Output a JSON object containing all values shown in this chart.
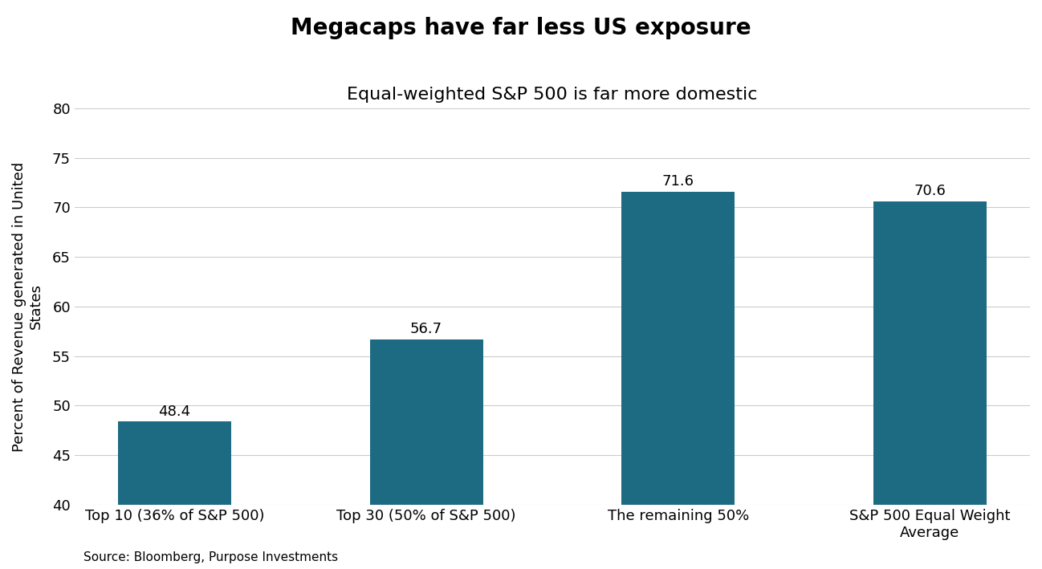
{
  "title": "Megacaps have far less US exposure",
  "subtitle": "Equal-weighted S&P 500 is far more domestic",
  "categories": [
    "Top 10 (36% of S&P 500)",
    "Top 30 (50% of S&P 500)",
    "The remaining 50%",
    "S&P 500 Equal Weight\nAverage"
  ],
  "values": [
    48.4,
    56.7,
    71.6,
    70.6
  ],
  "bar_color": "#1c6b82",
  "ylabel": "Percent of Revenue generated in United\nStates",
  "ylim": [
    40,
    80
  ],
  "yticks": [
    40,
    45,
    50,
    55,
    60,
    65,
    70,
    75,
    80
  ],
  "source": "Source: Bloomberg, Purpose Investments",
  "title_fontsize": 20,
  "subtitle_fontsize": 16,
  "label_fontsize": 13,
  "tick_fontsize": 13,
  "source_fontsize": 11,
  "bar_label_fontsize": 13,
  "background_color": "#ffffff",
  "grid_color": "#cccccc"
}
